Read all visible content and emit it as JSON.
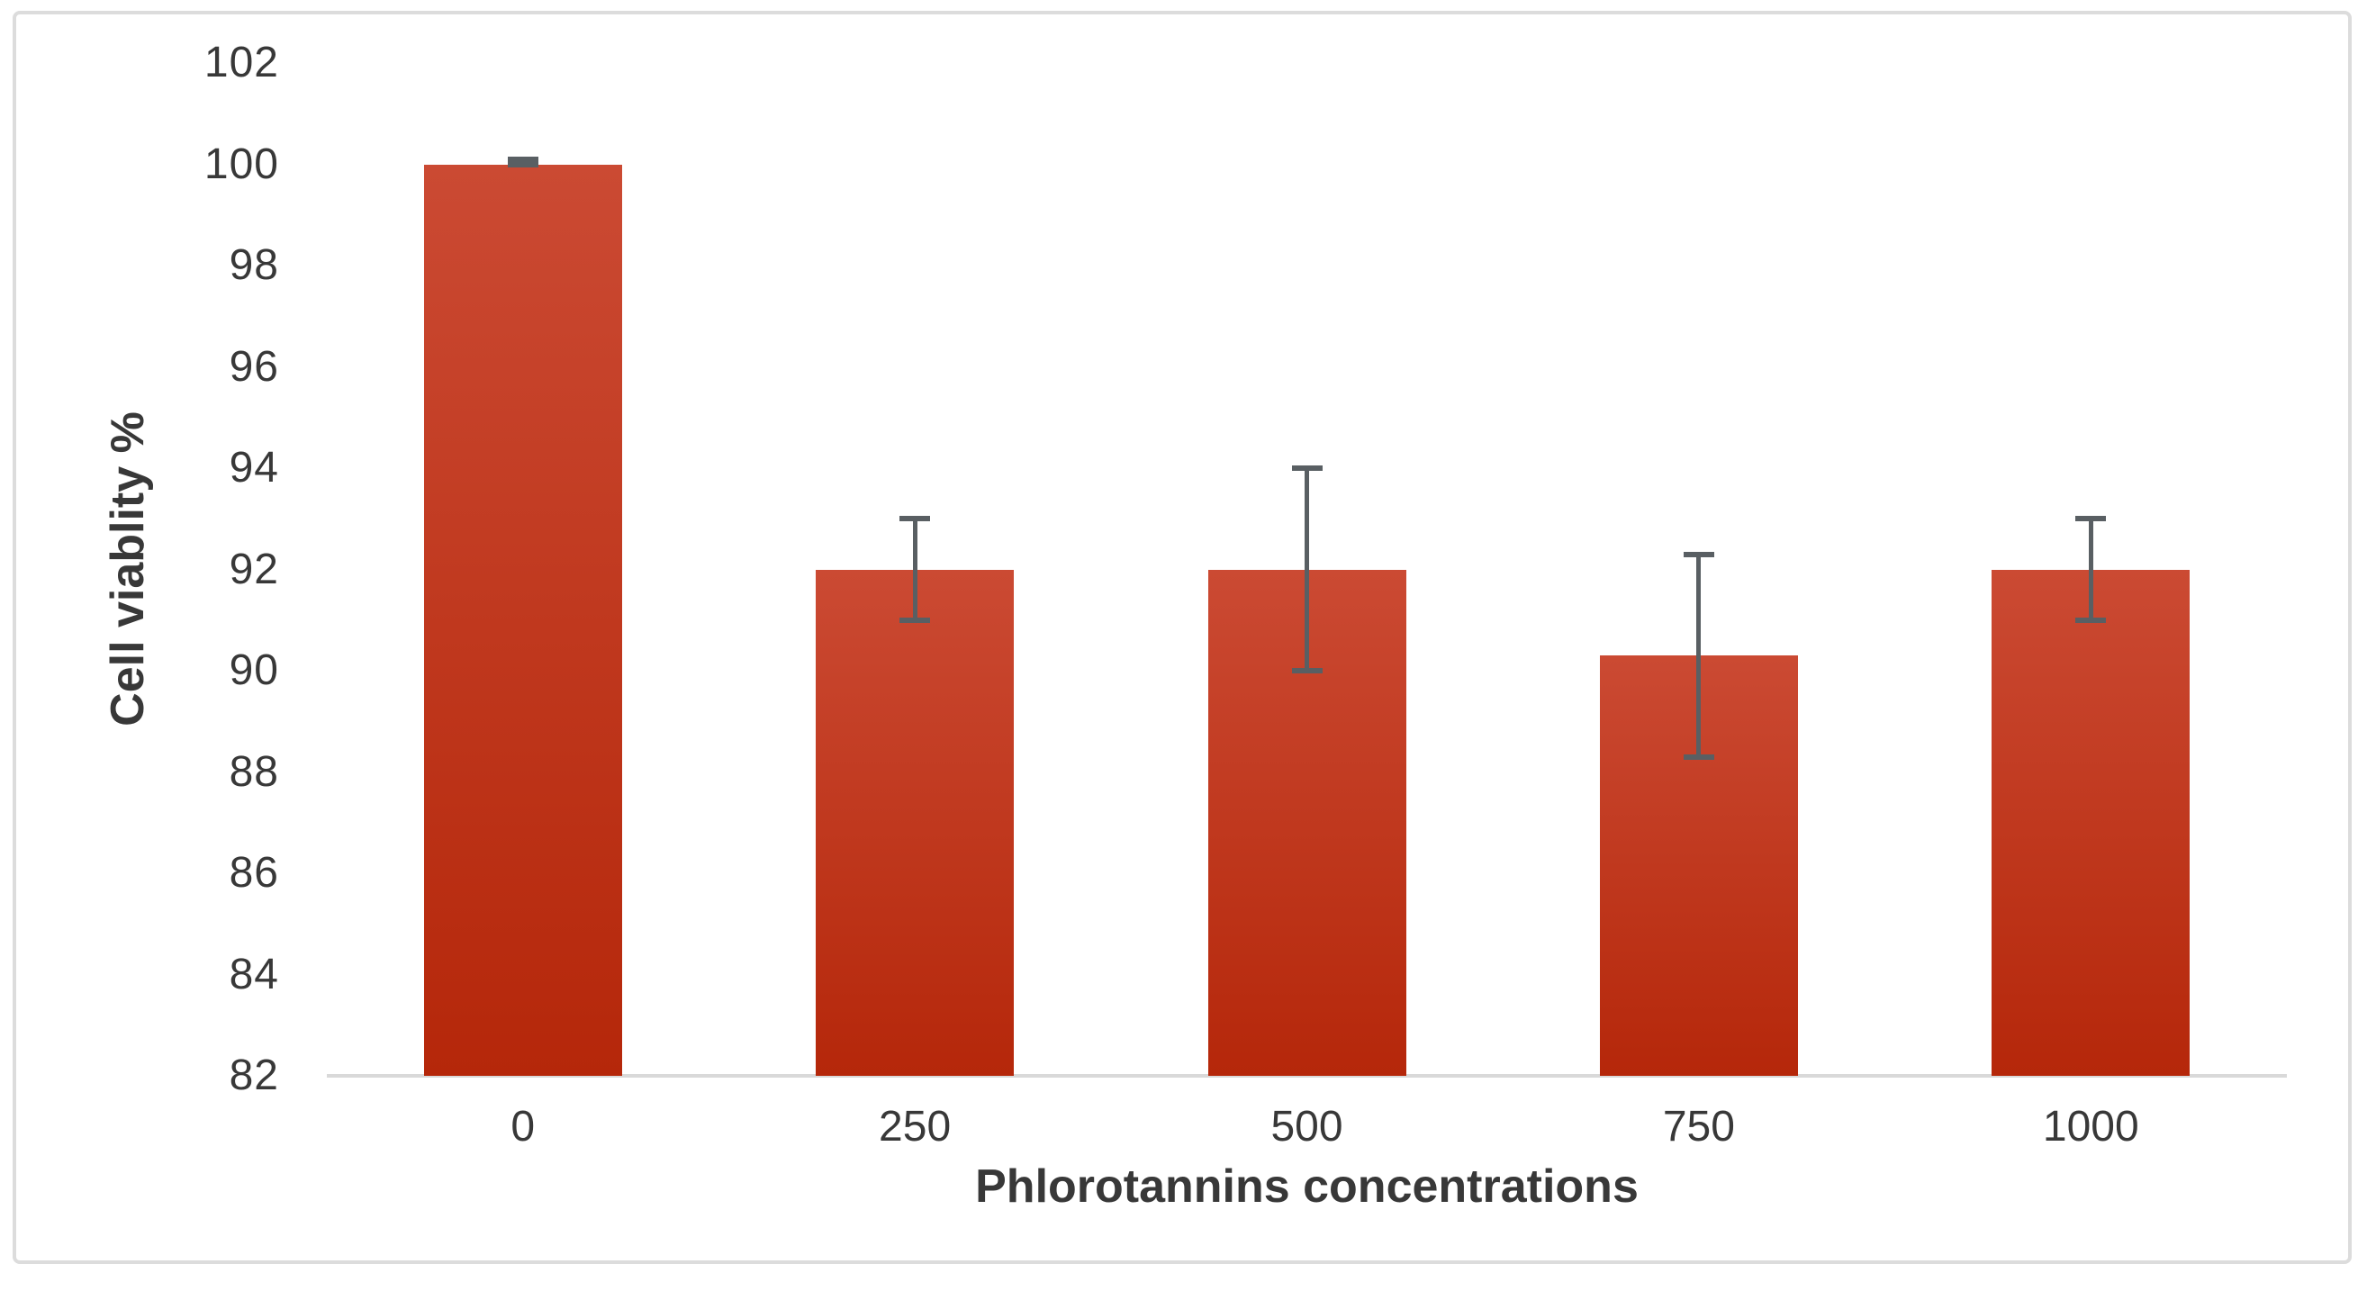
{
  "chart_data": {
    "type": "bar",
    "title": "",
    "xlabel": "Phlorotannins concentrations",
    "ylabel": "Cell viablity %",
    "categories": [
      "0",
      "250",
      "500",
      "750",
      "1000"
    ],
    "values": [
      100,
      92,
      92,
      90.3,
      92
    ],
    "error_plus": [
      0.1,
      1,
      2,
      2,
      1
    ],
    "error_minus": [
      0,
      1,
      2,
      2,
      1
    ],
    "ylim": [
      82,
      102
    ],
    "yticks": [
      102,
      100,
      98,
      96,
      94,
      92,
      90,
      88,
      86,
      84,
      82
    ],
    "grid": "off",
    "legend": "none",
    "bar_gradient_top": "#cb4a33",
    "bar_gradient_bottom": "#b5270a",
    "error_bar_color": "#595f63",
    "axis_line_color": "#d9d9d9",
    "text_color": "#383838",
    "frame_border_color": "#dcdcdc",
    "background_color": "#ffffff"
  }
}
